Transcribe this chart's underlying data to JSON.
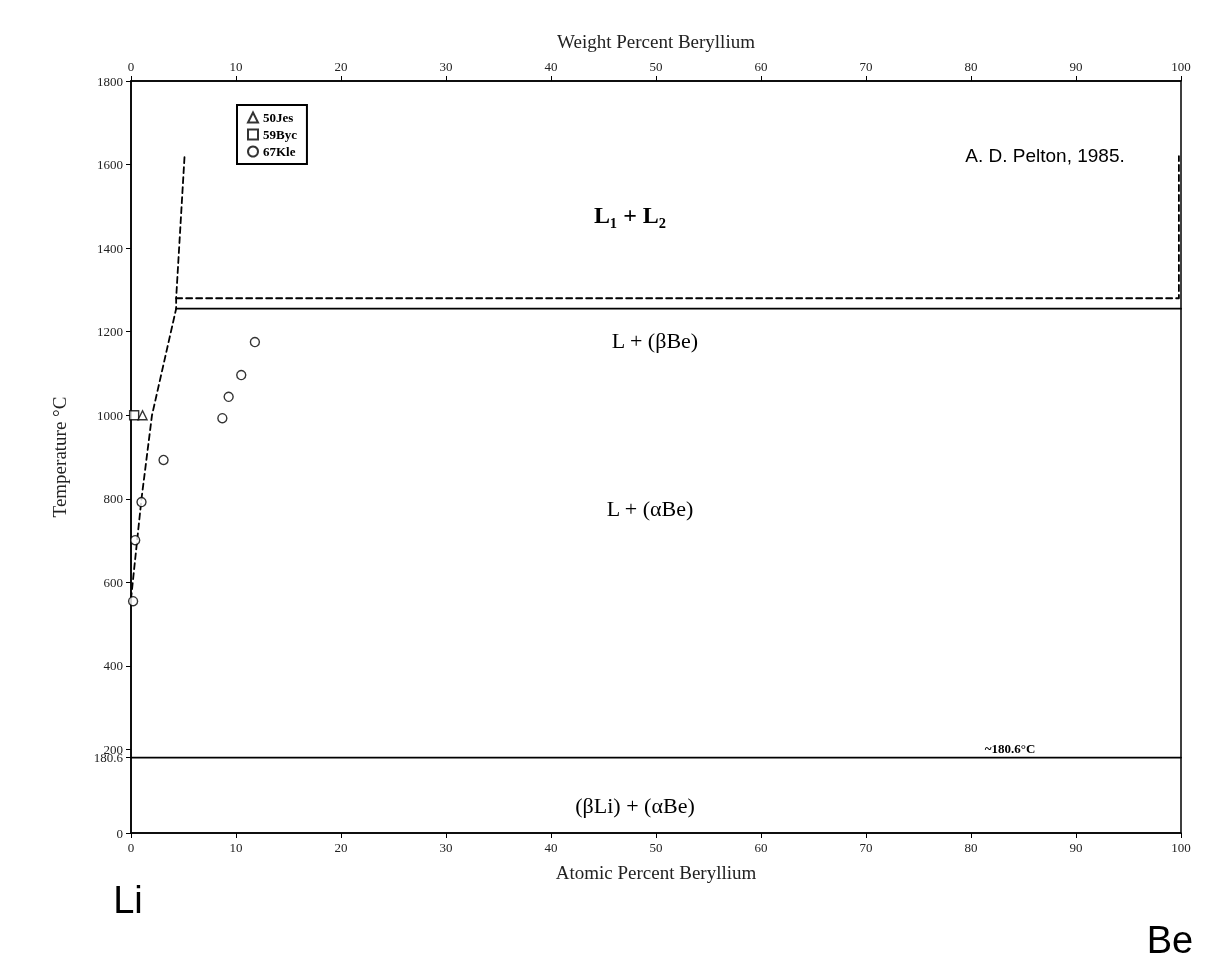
{
  "chart_data": {
    "type": "line",
    "xlabel": "Atomic Percent Beryllium",
    "x2label": "Weight Percent Beryllium",
    "ylabel": "Temperature °C",
    "xlim": [
      0,
      100
    ],
    "xticks": [
      0,
      10,
      20,
      30,
      40,
      50,
      60,
      70,
      80,
      90,
      100
    ],
    "x2lim": [
      0,
      100
    ],
    "x2ticks": [
      0,
      10,
      20,
      30,
      40,
      50,
      60,
      70,
      80,
      90,
      100
    ],
    "ylim": [
      0,
      1800
    ],
    "yticks": [
      0,
      180.6,
      200,
      400,
      600,
      800,
      1000,
      1200,
      1400,
      1600,
      1800
    ],
    "grid": false,
    "legend": "top left",
    "series": [
      {
        "color": "#000000",
        "line_style": "dashed",
        "marker": "none",
        "x": [
          0,
          1,
          2,
          4.3,
          4.3,
          5.1
        ],
        "values": [
          560,
          800,
          1000,
          1255,
          1280,
          1620
        ]
      },
      {
        "color": "#000000",
        "line_style": "dashed",
        "marker": "none",
        "x": [
          4.3,
          99.8,
          99.8
        ],
        "values": [
          1280,
          1280,
          1620
        ]
      },
      {
        "color": "#000000",
        "line_style": "solid",
        "marker": "none",
        "x": [
          4.3,
          100
        ],
        "values": [
          1255,
          1255
        ]
      },
      {
        "color": "#000000",
        "line_style": "solid",
        "marker": "none",
        "x": [
          0,
          100
        ],
        "values": [
          180.6,
          180.6
        ]
      },
      {
        "type": "scatter",
        "name": "50Jes",
        "color": "#000000",
        "marker": "triangle",
        "x": [
          1.1
        ],
        "values": [
          1000
        ]
      },
      {
        "type": "scatter",
        "name": "59Byc",
        "color": "#000000",
        "marker": "square",
        "x": [
          0.3
        ],
        "values": [
          1000
        ]
      },
      {
        "type": "scatter",
        "name": "67Kle",
        "color": "#000000",
        "marker": "circle",
        "x": [
          8.7,
          9.3,
          10.5,
          11.8,
          3.1,
          1.0,
          0.4,
          0.2
        ],
        "values": [
          993,
          1044,
          1096,
          1175,
          893,
          792,
          701,
          555
        ]
      }
    ],
    "annotations": [
      "L₁ + L₂",
      "L + (βBe)",
      "L + (αBe)",
      "(βLi) + (αBe)",
      "~180.6°C",
      "A. D. Pelton, 1985.",
      "Li",
      "Be"
    ]
  }
}
